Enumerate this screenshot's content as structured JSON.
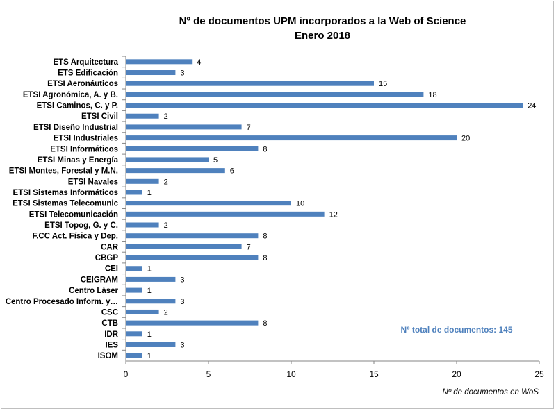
{
  "chart_data": {
    "type": "bar",
    "orientation": "horizontal",
    "title": "Nº de documentos UPM incorporados a la Web of Science",
    "subtitle": "Enero 2018",
    "xlabel": "Nº de documentos en WoS",
    "ylabel": "",
    "xlim": [
      0,
      25
    ],
    "xticks": [
      "0",
      "5",
      "10",
      "15",
      "20",
      "25"
    ],
    "grid": false,
    "legend": "none",
    "bar_color": "#4f81bd",
    "annotation_color": "#4f81bd",
    "annotation": "Nº total de documentos:  145",
    "categories": [
      "ETS Arquitectura",
      "ETS Edificación",
      "ETSI Aeronáuticos",
      "ETSI Agronómica, A. y B.",
      "ETSI Caminos, C. y P.",
      "ETSI Civil",
      "ETSI Diseño Industrial",
      "ETSI Industriales",
      "ETSI Informáticos",
      "ETSI Minas y Energía",
      "ETSI Montes, Forestal y M.N.",
      "ETSI Navales",
      "ETSI Sistemas Informáticos",
      "ETSI Sistemas Telecomunic",
      "ETSI Telecomunicación",
      "ETSI Topog, G. y C.",
      "F.CC Act. Física y Dep.",
      "CAR",
      "CBGP",
      "CEI",
      "CEIGRAM",
      "Centro Láser",
      "Centro Procesado Inform. y…",
      "CSC",
      "CTB",
      "IDR",
      "IES",
      "ISOM"
    ],
    "values": [
      4,
      3,
      15,
      18,
      24,
      2,
      7,
      20,
      8,
      5,
      6,
      2,
      1,
      10,
      12,
      2,
      8,
      7,
      8,
      1,
      3,
      1,
      3,
      2,
      8,
      1,
      3,
      1
    ]
  }
}
